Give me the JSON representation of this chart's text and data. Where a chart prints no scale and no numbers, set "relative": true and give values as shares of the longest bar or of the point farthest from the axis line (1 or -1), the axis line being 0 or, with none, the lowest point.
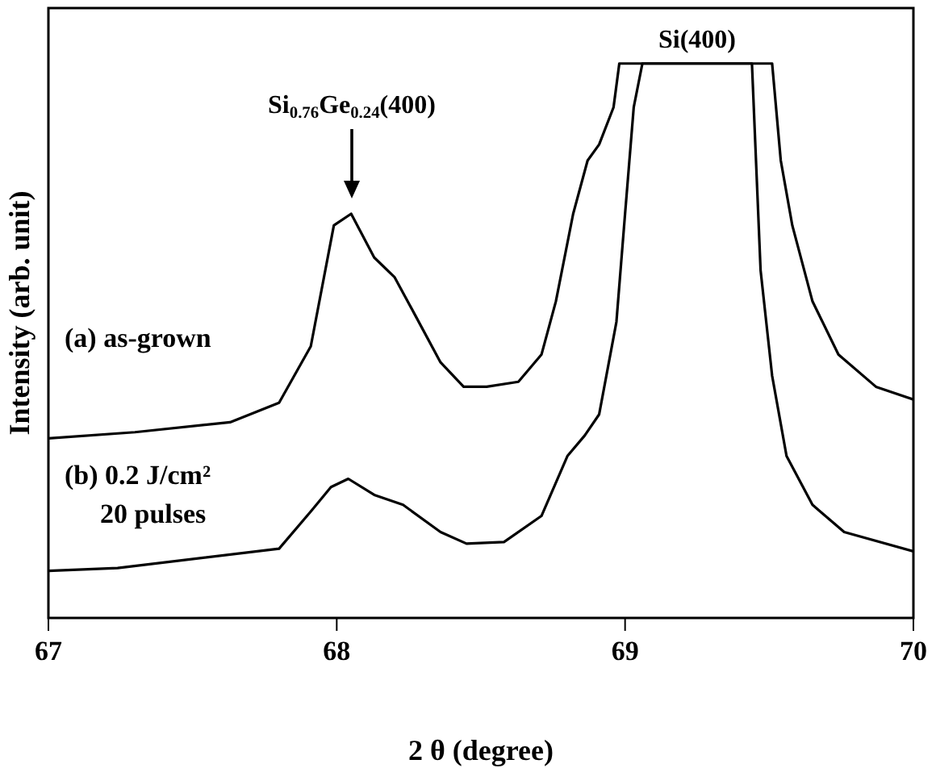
{
  "chart_data": {
    "type": "line",
    "relative": true,
    "xlabel": "2 θ (degree)",
    "ylabel": "Intensity (arb. unit)",
    "xlim": [
      67,
      70
    ],
    "xticks": [
      67,
      68,
      69,
      70
    ],
    "grid": false,
    "legend": false,
    "marker": "none",
    "line_style": "solid",
    "annotations": [
      "Si$_{0.76}$Ge$_{0.24}$(400)",
      {
        "text": "Si(400)",
        "x": 69.25,
        "y": 1
      }
    ],
    "series": [
      {
        "name": "(a) as-grown",
        "color": "#000000",
        "x": [
          67,
          67.3,
          67.63,
          67.8,
          67.91,
          67.99,
          68.05,
          68.13,
          68.2,
          68.27,
          68.36,
          68.44,
          68.52,
          68.63,
          68.71,
          68.76,
          68.82,
          68.87,
          68.91,
          68.96,
          68.98,
          69.51,
          69.54,
          69.58,
          69.65,
          69.74,
          69.87,
          70
        ],
        "values": [
          0.324,
          0.335,
          0.353,
          0.388,
          0.49,
          0.708,
          0.729,
          0.65,
          0.615,
          0.548,
          0.461,
          0.417,
          0.417,
          0.426,
          0.475,
          0.571,
          0.729,
          0.825,
          0.854,
          0.921,
          1,
          1,
          0.825,
          0.708,
          0.571,
          0.475,
          0.417,
          0.394
        ]
      },
      {
        "name": "(b) 0.2 J/cm² 20 pulses",
        "color": "#000000",
        "x": [
          67,
          67.24,
          67.8,
          67.91,
          67.98,
          68.04,
          68.13,
          68.23,
          68.36,
          68.45,
          68.58,
          68.71,
          68.8,
          68.86,
          68.91,
          68.97,
          69,
          69.03,
          69.06,
          69.44,
          69.47,
          69.51,
          69.56,
          69.65,
          69.76,
          70
        ],
        "values": [
          0.085,
          0.09,
          0.125,
          0.192,
          0.236,
          0.251,
          0.222,
          0.204,
          0.155,
          0.134,
          0.137,
          0.184,
          0.292,
          0.329,
          0.367,
          0.534,
          0.729,
          0.921,
          1,
          1,
          0.627,
          0.437,
          0.292,
          0.204,
          0.155,
          0.12
        ]
      }
    ]
  }
}
